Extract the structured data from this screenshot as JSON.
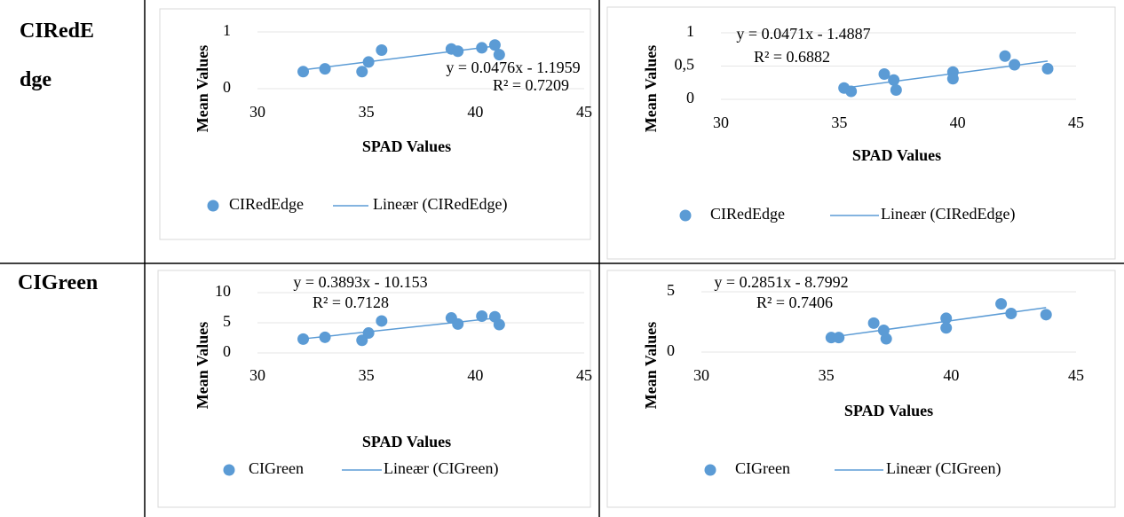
{
  "table": {
    "row_labels": [
      "CIRedEdge",
      "CIGreen"
    ]
  },
  "chart_data": [
    {
      "type": "scatter",
      "x_label": "SPAD Values",
      "y_label": "Mean Values",
      "xlim": [
        30,
        45
      ],
      "xticks": [
        30,
        35,
        40,
        45
      ],
      "ylim": [
        0,
        1
      ],
      "yticks": [
        0,
        1
      ],
      "grid": true,
      "series": [
        {
          "name": "CIRedEdge",
          "color": "#5b9bd5",
          "x": [
            32.1,
            33.1,
            34.8,
            35.1,
            35.7,
            38.9,
            39.2,
            40.3,
            40.9,
            41.1
          ],
          "values": [
            0.3,
            0.35,
            0.3,
            0.47,
            0.68,
            0.7,
            0.66,
            0.72,
            0.77,
            0.6
          ]
        }
      ],
      "trendline": {
        "label": "Lineær (CIRedEdge)",
        "slope": 0.0476,
        "intercept": -1.1959,
        "equation": "y = 0.0476x - 1.1959",
        "r2": "R² = 0.7209"
      }
    },
    {
      "type": "scatter",
      "x_label": "SPAD Values",
      "y_label": "Mean Values",
      "xlim": [
        30,
        45
      ],
      "xticks": [
        30,
        35,
        40,
        45
      ],
      "ylim": [
        0,
        1
      ],
      "yticks": [
        0,
        {
          "value": 0.5,
          "label": "0,5"
        },
        1
      ],
      "grid": true,
      "series": [
        {
          "name": "CIRedEdge",
          "color": "#5b9bd5",
          "x": [
            35.2,
            35.5,
            36.9,
            37.3,
            37.4,
            39.8,
            39.8,
            42.0,
            42.4,
            43.8
          ],
          "values": [
            0.17,
            0.12,
            0.38,
            0.29,
            0.14,
            0.41,
            0.31,
            0.65,
            0.52,
            0.46
          ]
        }
      ],
      "trendline": {
        "label": "Lineær (CIRedEdge)",
        "slope": 0.0471,
        "intercept": -1.4887,
        "equation": "y = 0.0471x - 1.4887",
        "r2": "R² = 0.6882"
      }
    },
    {
      "type": "scatter",
      "x_label": "SPAD Values",
      "y_label": "Mean Values",
      "xlim": [
        30,
        45
      ],
      "xticks": [
        30,
        35,
        40,
        45
      ],
      "ylim": [
        0,
        10
      ],
      "yticks": [
        0,
        5,
        10
      ],
      "grid": true,
      "series": [
        {
          "name": "CIGreen",
          "color": "#5b9bd5",
          "x": [
            32.1,
            33.1,
            34.8,
            35.1,
            35.7,
            38.9,
            39.2,
            40.3,
            40.9,
            41.1
          ],
          "values": [
            2.3,
            2.6,
            2.1,
            3.3,
            5.3,
            5.8,
            4.8,
            6.1,
            6.0,
            4.7
          ]
        }
      ],
      "trendline": {
        "label": "Lineær (CIGreen)",
        "slope": 0.3893,
        "intercept": -10.153,
        "equation": "y = 0.3893x - 10.153",
        "r2": "R² = 0.7128"
      }
    },
    {
      "type": "scatter",
      "x_label": "SPAD Values",
      "y_label": "Mean Values",
      "xlim": [
        30,
        45
      ],
      "xticks": [
        30,
        35,
        40,
        45
      ],
      "ylim": [
        0,
        5
      ],
      "yticks": [
        0,
        5
      ],
      "grid": true,
      "series": [
        {
          "name": "CIGreen",
          "color": "#5b9bd5",
          "x": [
            35.2,
            35.5,
            36.9,
            37.3,
            37.4,
            39.8,
            39.8,
            42.0,
            42.4,
            43.8
          ],
          "values": [
            1.2,
            1.2,
            2.4,
            1.8,
            1.1,
            2.8,
            2.0,
            4.0,
            3.2,
            3.1
          ]
        }
      ],
      "trendline": {
        "label": "Lineær (CIGreen)",
        "slope": 0.2851,
        "intercept": -8.7992,
        "equation": "y = 0.2851x - 8.7992",
        "r2": "R² = 0.7406"
      }
    }
  ]
}
